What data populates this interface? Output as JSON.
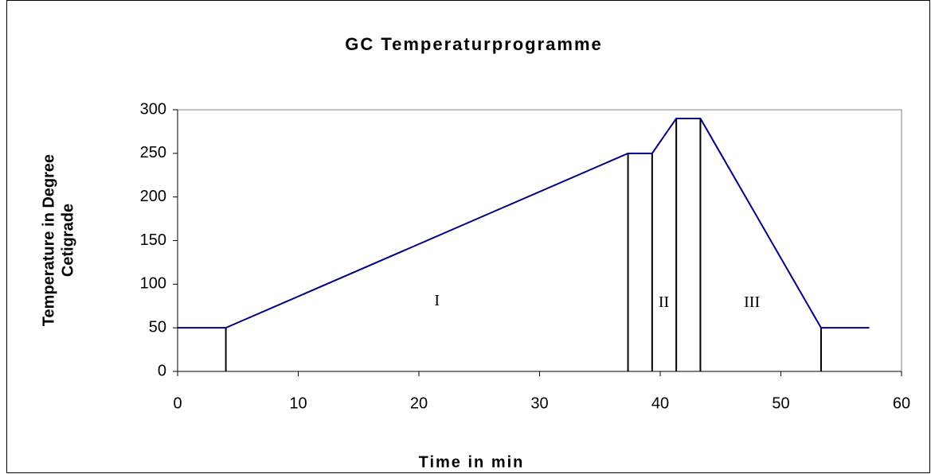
{
  "chart_data": {
    "type": "line",
    "title": "GC Temperaturprogramme",
    "x_label": "Time in min",
    "y_label": [
      "Temperature in Degree",
      "Cetigrade"
    ],
    "series": [
      {
        "name": "Temperature",
        "color": "#000080",
        "x": [
          0,
          4,
          37.33,
          39.33,
          41.33,
          43.33,
          53.33,
          57.33
        ],
        "values": [
          50,
          50,
          250,
          250,
          290,
          290,
          50,
          50
        ]
      }
    ],
    "drop_lines": true,
    "annotations": [
      {
        "text": "I",
        "x": 21.5,
        "y": 80
      },
      {
        "text": "II",
        "x": 40.3,
        "y": 78
      },
      {
        "text": "III",
        "x": 47.6,
        "y": 78
      }
    ],
    "xlim": [
      0,
      60
    ],
    "xticks": [
      0,
      10,
      20,
      30,
      40,
      50,
      60
    ],
    "ylim": [
      0,
      300
    ],
    "yticks": [
      0,
      50,
      100,
      150,
      200,
      250,
      300
    ],
    "grid": false
  }
}
